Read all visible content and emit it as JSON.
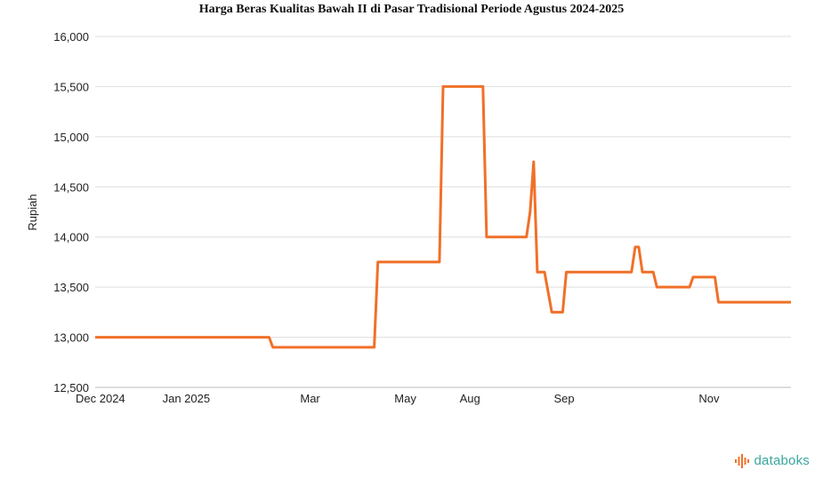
{
  "chart_data": {
    "type": "line",
    "title": "Harga Beras Kualitas Bawah II di Pasar Tradisional Periode Agustus 2024-2025",
    "ylabel": "Rupiah",
    "xlabel": "",
    "ylim": [
      12500,
      16000
    ],
    "y_ticks": [
      "12,500",
      "13,000",
      "13,500",
      "14,000",
      "14,500",
      "15,000",
      "15,500",
      "16,000"
    ],
    "y_tick_values": [
      12500,
      13000,
      13500,
      14000,
      14500,
      15000,
      15500,
      16000
    ],
    "x_ticks": [
      {
        "label": "Dec 2024",
        "x": 0
      },
      {
        "label": "Jan 2025",
        "x": 11
      },
      {
        "label": "Mar",
        "x": 30
      },
      {
        "label": "May",
        "x": 43
      },
      {
        "label": "Aug",
        "x": 52
      },
      {
        "label": "Sep",
        "x": 65
      },
      {
        "label": "Nov",
        "x": 85
      }
    ],
    "xlim": [
      0,
      96
    ],
    "grid": true,
    "series": [
      {
        "color": "#f07029",
        "x": [
          0,
          24,
          24.5,
          38.5,
          39,
          47.5,
          48,
          53.5,
          54,
          59.5,
          60,
          60.5,
          61,
          62,
          63,
          64.5,
          65,
          74,
          74.5,
          75,
          75.5,
          77,
          77.5,
          82,
          82.5,
          85.5,
          86,
          96
        ],
        "values": [
          13000,
          13000,
          12900,
          12900,
          13750,
          13750,
          15500,
          15500,
          14000,
          14000,
          14250,
          14750,
          13650,
          13650,
          13250,
          13250,
          13650,
          13650,
          13900,
          13900,
          13650,
          13650,
          13500,
          13500,
          13600,
          13600,
          13350,
          13350
        ]
      }
    ]
  },
  "brand": {
    "text": "databoks",
    "color": "#3aa6a0",
    "icon_color": "#f07029"
  }
}
